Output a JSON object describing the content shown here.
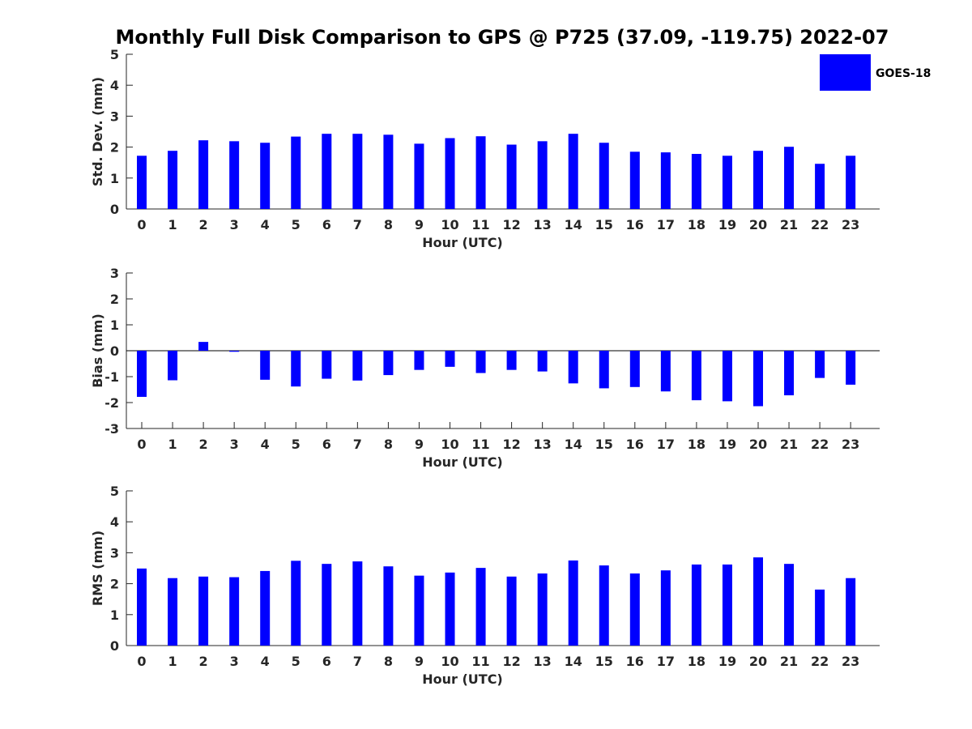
{
  "title": "Monthly Full Disk Comparison to GPS @ P725 (37.09, -119.75) 2022-07",
  "legend": {
    "label": "GOES-18",
    "color": "#0000ff"
  },
  "chart_data": [
    {
      "type": "bar",
      "categories": [
        "0",
        "1",
        "2",
        "3",
        "4",
        "5",
        "6",
        "7",
        "8",
        "9",
        "10",
        "11",
        "12",
        "13",
        "14",
        "15",
        "16",
        "17",
        "18",
        "19",
        "20",
        "21",
        "22",
        "23"
      ],
      "series": [
        {
          "name": "GOES-18",
          "values": [
            1.72,
            1.88,
            2.22,
            2.19,
            2.14,
            2.34,
            2.43,
            2.43,
            2.4,
            2.11,
            2.29,
            2.35,
            2.08,
            2.19,
            2.43,
            2.14,
            1.85,
            1.83,
            1.78,
            1.72,
            1.88,
            2.01,
            1.46,
            1.72
          ]
        }
      ],
      "xlabel": "Hour (UTC)",
      "ylabel": "Std. Dev. (mm)",
      "ylim": [
        0,
        5
      ],
      "yticks": [
        "0",
        "1",
        "2",
        "3",
        "4",
        "5"
      ]
    },
    {
      "type": "bar",
      "categories": [
        "0",
        "1",
        "2",
        "3",
        "4",
        "5",
        "6",
        "7",
        "8",
        "9",
        "10",
        "11",
        "12",
        "13",
        "14",
        "15",
        "16",
        "17",
        "18",
        "19",
        "20",
        "21",
        "22",
        "23"
      ],
      "series": [
        {
          "name": "GOES-18",
          "values": [
            -1.78,
            -1.14,
            0.34,
            -0.04,
            -1.12,
            -1.38,
            -1.08,
            -1.15,
            -0.94,
            -0.74,
            -0.62,
            -0.86,
            -0.74,
            -0.8,
            -1.26,
            -1.45,
            -1.4,
            -1.57,
            -1.91,
            -1.95,
            -2.14,
            -1.72,
            -1.05,
            -1.31
          ]
        }
      ],
      "xlabel": "Hour (UTC)",
      "ylabel": "Bias (mm)",
      "ylim": [
        -3,
        3
      ],
      "yticks": [
        "-3",
        "-2",
        "-1",
        "0",
        "1",
        "2",
        "3"
      ]
    },
    {
      "type": "bar",
      "categories": [
        "0",
        "1",
        "2",
        "3",
        "4",
        "5",
        "6",
        "7",
        "8",
        "9",
        "10",
        "11",
        "12",
        "13",
        "14",
        "15",
        "16",
        "17",
        "18",
        "19",
        "20",
        "21",
        "22",
        "23"
      ],
      "series": [
        {
          "name": "GOES-18",
          "values": [
            2.49,
            2.18,
            2.23,
            2.21,
            2.41,
            2.74,
            2.64,
            2.72,
            2.56,
            2.26,
            2.36,
            2.51,
            2.23,
            2.33,
            2.75,
            2.59,
            2.33,
            2.43,
            2.62,
            2.62,
            2.85,
            2.64,
            1.81,
            2.18
          ]
        }
      ],
      "xlabel": "Hour (UTC)",
      "ylabel": "RMS (mm)",
      "ylim": [
        0,
        5
      ],
      "yticks": [
        "0",
        "1",
        "2",
        "3",
        "4",
        "5"
      ]
    }
  ]
}
